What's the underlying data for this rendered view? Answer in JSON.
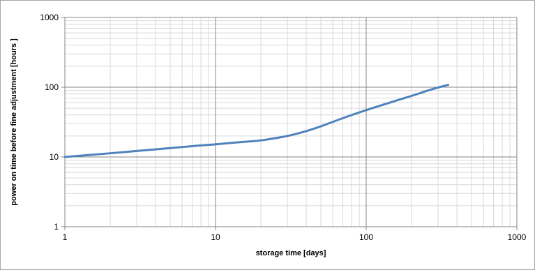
{
  "chart_data": {
    "type": "line",
    "title": "",
    "xlabel": "storage time [days]",
    "ylabel": "power on time before fine adjustment [hours ]",
    "x_scale": "log",
    "y_scale": "log",
    "xlim": [
      1,
      1000
    ],
    "ylim": [
      1,
      1000
    ],
    "x_ticks": [
      "1",
      "10",
      "100",
      "1000"
    ],
    "y_ticks": [
      "1",
      "10",
      "100",
      "1000"
    ],
    "grid": true,
    "legend": "none",
    "series": [
      {
        "color": "#4f81bd",
        "x": [
          1,
          2,
          3,
          5,
          7,
          10,
          15,
          20,
          30,
          40,
          50,
          70,
          100,
          150,
          200,
          250,
          300,
          350
        ],
        "y": [
          10,
          11.3,
          12.2,
          13.4,
          14.3,
          15.2,
          16.4,
          17.3,
          20,
          23.5,
          27.5,
          36,
          47,
          62,
          75,
          88,
          99,
          108
        ]
      }
    ]
  }
}
